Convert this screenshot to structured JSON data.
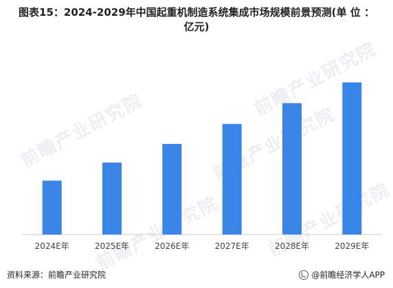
{
  "title": {
    "line1": "图表15：2024-2029年中国起重机制造系统集成市场规模前景预测(单 位 ：",
    "line2": "亿元)"
  },
  "chart_data": {
    "type": "bar",
    "title": "图表15：2024-2029年中国起重机制造系统集成市场规模前景预测(单 位 ：亿元)",
    "categories": [
      "2024E年",
      "2025E年",
      "2026E年",
      "2027E年",
      "2028E年",
      "2029E年"
    ],
    "series": [
      {
        "values": [
          78,
          104,
          131,
          160,
          190,
          220
        ]
      }
    ],
    "xlabel": "",
    "ylabel": "",
    "ylim": [
      0,
      240
    ],
    "grid": false,
    "bar_color": "#3a86e8",
    "axis_color": "#cccccc"
  },
  "footer": {
    "source": "资料来源：前瞻产业研究院",
    "brand": "@前瞻经济学人APP"
  },
  "watermark": {
    "text": "前瞻产业研究院"
  }
}
